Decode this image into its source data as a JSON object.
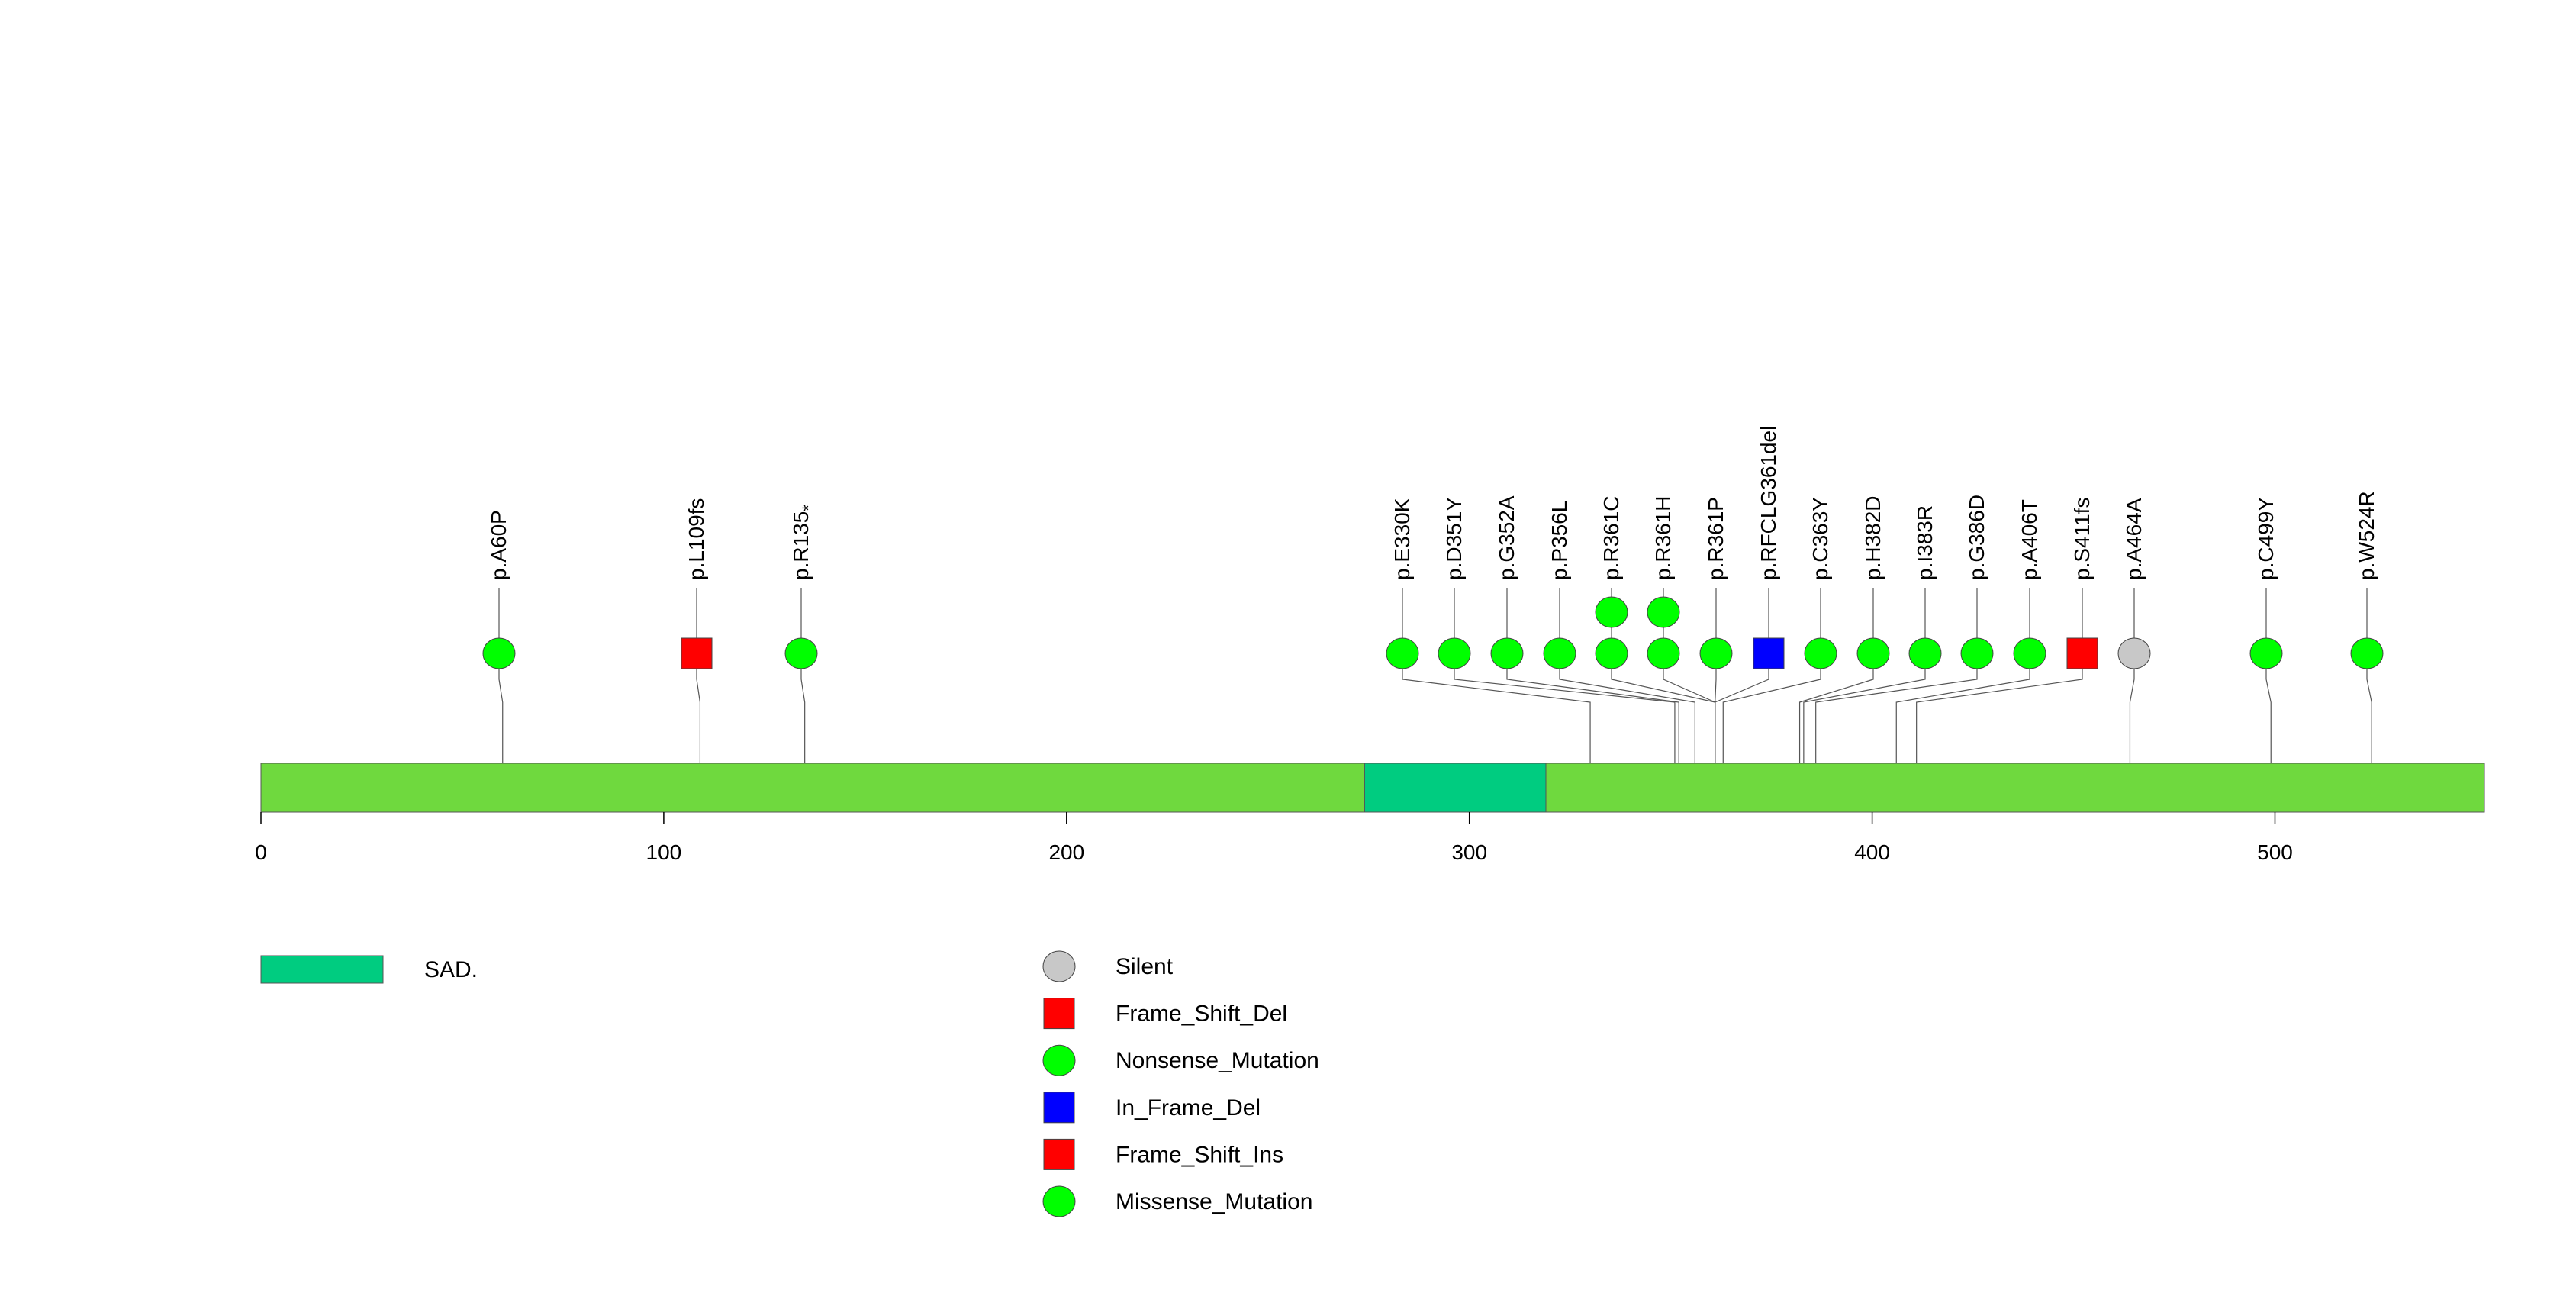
{
  "chart_data": {
    "type": "lollipop",
    "protein_length": 552,
    "x_ticks": [
      0,
      100,
      200,
      300,
      400,
      500
    ],
    "x_tick_labels": [
      "0",
      "100",
      "200",
      "300",
      "400",
      "500"
    ],
    "domains": [
      {
        "name": "SAD.",
        "start": 274,
        "end": 319,
        "color": "#00CC80"
      }
    ],
    "backbone_color": "#6FD93E",
    "mutations": [
      {
        "label": "p.A60P",
        "position": 60,
        "type": "Missense_Mutation",
        "count": 1
      },
      {
        "label": "p.L109fs",
        "position": 109,
        "type": "Frame_Shift_Del",
        "count": 1
      },
      {
        "label": "p.R135",
        "label_sub": "*",
        "position": 135,
        "type": "Nonsense_Mutation",
        "count": 1
      },
      {
        "label": "p.E330K",
        "position": 330,
        "type": "Missense_Mutation",
        "count": 1
      },
      {
        "label": "p.D351Y",
        "position": 351,
        "type": "Missense_Mutation",
        "count": 1
      },
      {
        "label": "p.G352A",
        "position": 352,
        "type": "Missense_Mutation",
        "count": 1
      },
      {
        "label": "p.P356L",
        "position": 356,
        "type": "Missense_Mutation",
        "count": 1
      },
      {
        "label": "p.R361C",
        "position": 361,
        "type": "Missense_Mutation",
        "count": 2
      },
      {
        "label": "p.R361H",
        "position": 361,
        "type": "Missense_Mutation",
        "count": 2
      },
      {
        "label": "p.R361P",
        "position": 361,
        "type": "Missense_Mutation",
        "count": 1
      },
      {
        "label": "p.RFCLG361del",
        "position": 361,
        "type": "In_Frame_Del",
        "count": 1
      },
      {
        "label": "p.C363Y",
        "position": 363,
        "type": "Missense_Mutation",
        "count": 1
      },
      {
        "label": "p.H382D",
        "position": 382,
        "type": "Missense_Mutation",
        "count": 1
      },
      {
        "label": "p.I383R",
        "position": 383,
        "type": "Missense_Mutation",
        "count": 1
      },
      {
        "label": "p.G386D",
        "position": 386,
        "type": "Missense_Mutation",
        "count": 1
      },
      {
        "label": "p.A406T",
        "position": 406,
        "type": "Missense_Mutation",
        "count": 1
      },
      {
        "label": "p.S411fs",
        "position": 411,
        "type": "Frame_Shift_Ins",
        "count": 1
      },
      {
        "label": "p.A464A",
        "position": 464,
        "type": "Silent",
        "count": 1
      },
      {
        "label": "p.C499Y",
        "position": 499,
        "type": "Missense_Mutation",
        "count": 1
      },
      {
        "label": "p.W524R",
        "position": 524,
        "type": "Missense_Mutation",
        "count": 1
      }
    ],
    "legend": [
      {
        "label": "Silent",
        "shape": "circle",
        "color": "#C8C8C8"
      },
      {
        "label": "Frame_Shift_Del",
        "shape": "square",
        "color": "#FF0000"
      },
      {
        "label": "Nonsense_Mutation",
        "shape": "circle",
        "color": "#00FF00"
      },
      {
        "label": "In_Frame_Del",
        "shape": "square",
        "color": "#0000FF"
      },
      {
        "label": "Frame_Shift_Ins",
        "shape": "square",
        "color": "#FF0000"
      },
      {
        "label": "Missense_Mutation",
        "shape": "circle",
        "color": "#00FF00"
      }
    ]
  }
}
